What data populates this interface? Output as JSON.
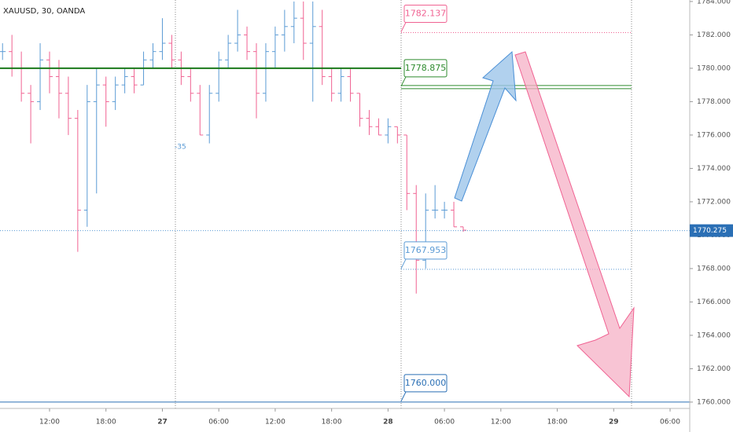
{
  "chart_data": {
    "type": "ohlc",
    "title": "XAUUSD, 30, OANDA",
    "x": [
      7,
      8,
      9,
      10,
      11,
      12,
      13,
      14,
      15,
      16,
      17,
      18,
      19,
      20,
      21,
      22,
      23,
      24,
      25,
      26,
      27,
      28,
      29,
      30,
      31,
      32,
      33,
      34,
      35,
      36,
      37,
      38,
      39,
      40,
      41,
      42,
      43,
      44,
      45,
      46,
      47,
      48,
      49,
      50,
      51,
      52,
      53,
      54,
      55,
      56
    ],
    "open": [
      1781,
      1781,
      1780,
      1778.5,
      1778,
      1780.5,
      1779.5,
      1778.5,
      1777,
      1771.5,
      1778,
      1779,
      1778,
      1779,
      1779.5,
      1779,
      1780.5,
      1781,
      1781.5,
      1780.5,
      1779.5,
      1778.5,
      1776,
      1778.5,
      1780.5,
      1781.5,
      1782,
      1781,
      1778.5,
      1781,
      1782,
      1782.5,
      1783,
      1781.5,
      1782.5,
      1779.5,
      1778.5,
      1779.5,
      1778.5,
      1777,
      1776.5,
      1776,
      1776.5,
      1776,
      1772.5,
      1768.5,
      1771.5,
      1771.5,
      1771.5,
      1770.5
    ],
    "high": [
      1781.5,
      1782,
      1781,
      1779,
      1781.5,
      1781,
      1780.5,
      1779.5,
      1777.5,
      1779,
      1780,
      1779.5,
      1779.5,
      1780,
      1780,
      1781,
      1781.5,
      1783,
      1782,
      1781,
      1780,
      1779,
      1779,
      1781,
      1782,
      1783.5,
      1782.5,
      1781.5,
      1781.5,
      1782.5,
      1783.5,
      1784,
      1784,
      1784,
      1783.5,
      1780,
      1780,
      1780,
      1778.5,
      1777.5,
      1777,
      1777,
      1776.5,
      1776,
      1773,
      1772.5,
      1773,
      1772,
      1772,
      1770.5
    ],
    "low": [
      1780.5,
      1779.5,
      1778,
      1775.5,
      1777.5,
      1778.5,
      1777,
      1776,
      1769,
      1770.5,
      1772.5,
      1776.5,
      1777.5,
      1778.5,
      1778.5,
      1779,
      1780,
      1780.5,
      1780,
      1779,
      1778,
      1776,
      1775.5,
      1778,
      1780,
      1781,
      1780.5,
      1777,
      1778,
      1780,
      1781,
      1781.5,
      1780.5,
      1778,
      1779,
      1778,
      1778,
      1778,
      1776.5,
      1776,
      1776,
      1775.5,
      1775.5,
      1771.5,
      1766.5,
      1768,
      1771,
      1771,
      1770.5,
      1770.2
    ],
    "close": [
      1781,
      1780,
      1778.5,
      1778,
      1780.5,
      1779.5,
      1778.5,
      1777,
      1771.5,
      1778,
      1779,
      1778,
      1779,
      1779.5,
      1779,
      1780.5,
      1781,
      1781.5,
      1780.5,
      1779.5,
      1778.5,
      1776,
      1778.5,
      1780.5,
      1781.5,
      1782,
      1781,
      1778.5,
      1781,
      1782,
      1782.5,
      1783,
      1781.5,
      1782.5,
      1779.5,
      1778.5,
      1779.5,
      1778.5,
      1777,
      1776.5,
      1776,
      1776.5,
      1776,
      1772.5,
      1768.5,
      1771.5,
      1771.5,
      1771.5,
      1770.5,
      1770.3
    ],
    "up_color": "#5b9bd5",
    "down_color": "#f06292",
    "xlim": [
      6.73,
      80.09
    ],
    "ylim": [
      1759.62,
      1784.09
    ],
    "xticks": [
      {
        "value": 12,
        "label": "12:00"
      },
      {
        "value": 18,
        "label": "18:00"
      },
      {
        "value": 24,
        "label": "27"
      },
      {
        "value": 30,
        "label": "06:00"
      },
      {
        "value": 36,
        "label": "12:00"
      },
      {
        "value": 42,
        "label": "18:00"
      },
      {
        "value": 48,
        "label": "28"
      },
      {
        "value": 54,
        "label": "06:00"
      },
      {
        "value": 60,
        "label": "12:00"
      },
      {
        "value": 66,
        "label": "18:00"
      },
      {
        "value": 72,
        "label": "29"
      },
      {
        "value": 78,
        "label": "06:00"
      }
    ],
    "yticks": [
      {
        "value": 1760,
        "label": "1760.000"
      },
      {
        "value": 1762,
        "label": "1762.000"
      },
      {
        "value": 1764,
        "label": "1764.000"
      },
      {
        "value": 1766,
        "label": "1766.000"
      },
      {
        "value": 1768,
        "label": "1768.000"
      },
      {
        "value": 1770,
        "label": "1770.000"
      },
      {
        "value": 1772,
        "label": "1772.000"
      },
      {
        "value": 1774,
        "label": "1774.000"
      },
      {
        "value": 1776,
        "label": "1776.000"
      },
      {
        "value": 1778,
        "label": "1778.000"
      },
      {
        "value": 1780,
        "label": "1780.000"
      },
      {
        "value": 1782,
        "label": "1782.000"
      },
      {
        "value": 1784,
        "label": "1784.000"
      }
    ],
    "last_price": 1770.275,
    "support_line": {
      "value": 1780,
      "color": "#1b7a1b"
    },
    "levels": [
      {
        "value": 1782.137,
        "color": "#f06292"
      },
      {
        "value": 1778.875,
        "color": "#2e8b2e"
      },
      {
        "value": 1767.953,
        "color": "#5b9bd5"
      },
      {
        "value": {
          "value": 1760,
          "label": "1760.000"
        },
        "color": "#2a6fb5"
      }
    ],
    "annotation": "-35"
  }
}
